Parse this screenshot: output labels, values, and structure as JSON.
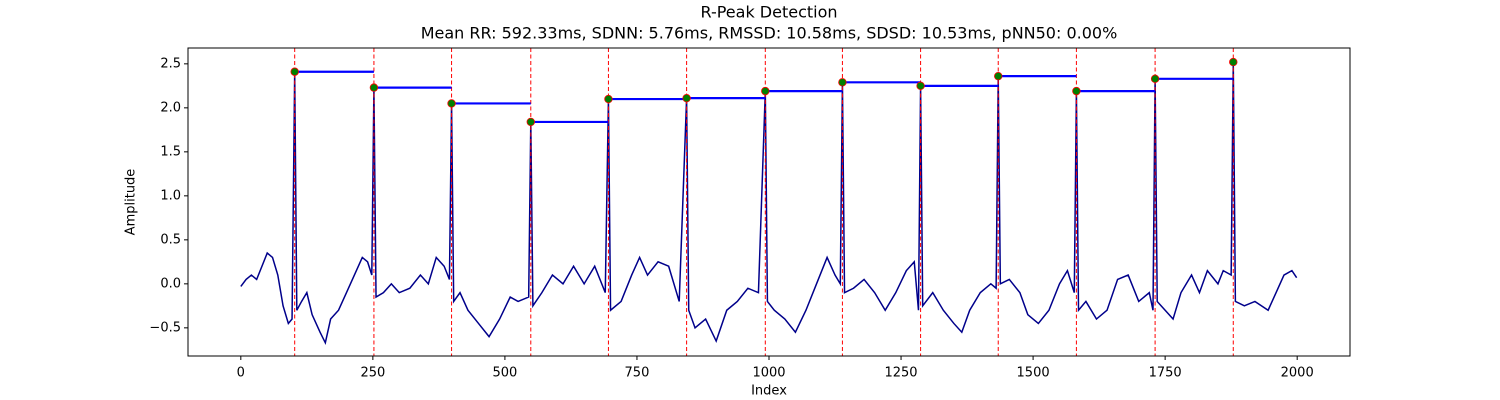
{
  "chart_data": {
    "type": "line",
    "title": "R-Peak Detection",
    "subtitle": "Mean RR: 592.33ms, SDNN: 5.76ms, RMSSD: 10.58ms, SDSD: 10.53ms, pNN50: 0.00%",
    "x_label": "Index",
    "y_label": "Amplitude",
    "xlim": [
      -100,
      2100
    ],
    "ylim": [
      -0.82,
      2.68
    ],
    "xticks": [
      0,
      250,
      500,
      750,
      1000,
      1250,
      1500,
      1750,
      2000
    ],
    "yticks": [
      {
        "value": -0.5,
        "label": "−0.5"
      },
      {
        "value": 0,
        "label": "0.0"
      },
      0.5,
      {
        "value": 1,
        "label": "1.0"
      },
      1.5,
      {
        "value": 2,
        "label": "2.0"
      },
      2.5
    ],
    "signal": {
      "color": "#00008b",
      "x": [
        0,
        10,
        20,
        30,
        40,
        50,
        60,
        70,
        80,
        90,
        97,
        102,
        106,
        115,
        125,
        135,
        150,
        160,
        170,
        185,
        200,
        215,
        230,
        240,
        248,
        252,
        256,
        270,
        285,
        300,
        320,
        340,
        355,
        370,
        385,
        395,
        399,
        403,
        415,
        430,
        450,
        470,
        490,
        510,
        525,
        545,
        549,
        553,
        570,
        590,
        610,
        630,
        650,
        670,
        690,
        696,
        700,
        720,
        740,
        755,
        770,
        790,
        810,
        830,
        844,
        848,
        860,
        880,
        900,
        920,
        940,
        960,
        980,
        993,
        997,
        1010,
        1030,
        1050,
        1070,
        1090,
        1110,
        1125,
        1135,
        1139,
        1143,
        1160,
        1180,
        1200,
        1220,
        1240,
        1260,
        1275,
        1283,
        1287,
        1291,
        1310,
        1330,
        1350,
        1365,
        1380,
        1400,
        1420,
        1430,
        1434,
        1438,
        1455,
        1475,
        1490,
        1510,
        1530,
        1550,
        1565,
        1578,
        1582,
        1586,
        1600,
        1620,
        1640,
        1660,
        1680,
        1700,
        1720,
        1727,
        1731,
        1735,
        1750,
        1765,
        1780,
        1800,
        1815,
        1830,
        1850,
        1860,
        1875,
        1879,
        1883,
        1900,
        1920,
        1945,
        1960,
        1975,
        1990,
        1999
      ],
      "values": [
        -0.03,
        0.05,
        0.1,
        0.05,
        0.2,
        0.35,
        0.3,
        0.1,
        -0.25,
        -0.45,
        -0.4,
        2.41,
        -0.3,
        -0.2,
        -0.1,
        -0.35,
        -0.55,
        -0.67,
        -0.4,
        -0.3,
        -0.1,
        0.1,
        0.3,
        0.25,
        0.1,
        2.23,
        -0.15,
        -0.1,
        0.0,
        -0.1,
        -0.05,
        0.1,
        0.0,
        0.3,
        0.2,
        0.05,
        2.05,
        -0.2,
        -0.1,
        -0.3,
        -0.45,
        -0.6,
        -0.4,
        -0.15,
        -0.2,
        -0.15,
        1.84,
        -0.25,
        -0.1,
        0.1,
        0.0,
        0.2,
        0.0,
        0.2,
        -0.1,
        2.1,
        -0.3,
        -0.2,
        0.1,
        0.3,
        0.1,
        0.25,
        0.2,
        -0.2,
        2.11,
        -0.3,
        -0.5,
        -0.4,
        -0.65,
        -0.3,
        -0.2,
        -0.05,
        -0.1,
        2.19,
        -0.2,
        -0.3,
        -0.4,
        -0.55,
        -0.3,
        0.0,
        0.3,
        0.1,
        0.0,
        2.29,
        -0.1,
        -0.05,
        0.05,
        -0.1,
        -0.3,
        -0.1,
        0.15,
        0.25,
        -0.3,
        2.25,
        -0.25,
        -0.1,
        -0.3,
        -0.45,
        -0.55,
        -0.3,
        -0.1,
        0.0,
        -0.05,
        2.36,
        0.0,
        0.05,
        -0.1,
        -0.35,
        -0.45,
        -0.3,
        0.0,
        0.15,
        -0.1,
        2.19,
        -0.3,
        -0.2,
        -0.4,
        -0.3,
        0.05,
        0.1,
        -0.2,
        -0.1,
        -0.3,
        2.33,
        -0.2,
        -0.3,
        -0.4,
        -0.1,
        0.1,
        -0.1,
        0.15,
        0.0,
        0.15,
        0.1,
        2.52,
        -0.2,
        -0.25,
        -0.2,
        -0.3,
        -0.1,
        0.1,
        0.15,
        0.07
      ]
    },
    "peaks": {
      "color": "#008000",
      "edge_color": "#ff0000",
      "x": [
        102,
        252,
        399,
        549,
        696,
        844,
        993,
        1139,
        1287,
        1434,
        1582,
        1731,
        1879
      ],
      "values": [
        2.41,
        2.23,
        2.05,
        1.84,
        2.1,
        2.11,
        2.19,
        2.29,
        2.25,
        2.36,
        2.19,
        2.33,
        2.52
      ]
    },
    "peak_line_color": "#ff0000",
    "rr_line_color": "#0000ff"
  }
}
